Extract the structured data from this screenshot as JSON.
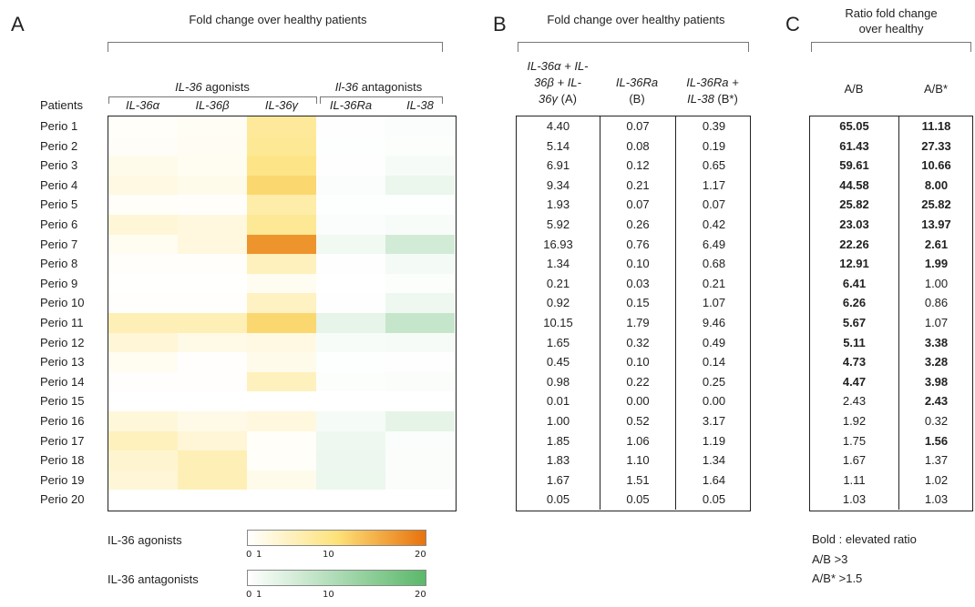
{
  "panel_a": {
    "letter": "A",
    "title": "Fold change over healthy patients",
    "group_agonists_prefix": "IL-36",
    "group_agonists_suffix": " agonists",
    "group_antagonists_prefix": "Il-36",
    "group_antagonists_suffix": " antagonists",
    "patients_label": "Patients",
    "columns": [
      "IL-36α",
      "IL-36β",
      "IL-36γ",
      "IL-36Ra",
      "IL-38"
    ],
    "patients": [
      "Perio 1",
      "Perio 2",
      "Perio 3",
      "Perio 4",
      "Perio 5",
      "Perio 6",
      "Perio 7",
      "Perio 8",
      "Perio 9",
      "Perio 10",
      "Perio 11",
      "Perio 12",
      "Perio 13",
      "Perio 14",
      "Perio 15",
      "Perio 16",
      "Perio 17",
      "Perio 18",
      "Perio 19",
      "Perio 20"
    ],
    "agonist_color_low": "#ffffff",
    "agonist_color_mid": "#fde27a",
    "agonist_color_high": "#e8720c",
    "antagonist_color_low": "#ffffff",
    "antagonist_color_high": "#5bb86a",
    "heatmap_values": [
      [
        0.5,
        0.8,
        7.5,
        0.3,
        0.6
      ],
      [
        0.6,
        0.9,
        8.0,
        0.2,
        0.4
      ],
      [
        1.5,
        1.0,
        9.0,
        0.3,
        1.0
      ],
      [
        2.0,
        1.5,
        11.0,
        0.6,
        2.5
      ],
      [
        0.5,
        0.3,
        6.5,
        0.2,
        0.2
      ],
      [
        3.0,
        2.5,
        8.0,
        0.6,
        0.8
      ],
      [
        1.0,
        2.5,
        17.0,
        1.8,
        5.5
      ],
      [
        0.4,
        0.3,
        5.0,
        0.3,
        1.4
      ],
      [
        0.1,
        0.1,
        1.0,
        0.1,
        0.4
      ],
      [
        0.2,
        0.2,
        4.5,
        0.3,
        2.0
      ],
      [
        5.5,
        5.5,
        11.0,
        3.0,
        7.0
      ],
      [
        3.0,
        1.8,
        2.0,
        0.8,
        1.0
      ],
      [
        1.0,
        0.2,
        1.5,
        0.2,
        0.3
      ],
      [
        0.2,
        0.2,
        5.0,
        0.4,
        0.5
      ],
      [
        0.0,
        0.0,
        0.0,
        0.0,
        0.0
      ],
      [
        2.8,
        1.8,
        2.5,
        1.2,
        3.2
      ],
      [
        5.0,
        3.0,
        0.5,
        2.0,
        0.6
      ],
      [
        3.5,
        5.5,
        0.5,
        2.2,
        0.5
      ],
      [
        3.0,
        5.5,
        1.5,
        2.3,
        0.5
      ],
      [
        0.0,
        0.0,
        0.0,
        0.0,
        0.0
      ]
    ],
    "legend": {
      "agonists_label": "IL-36 agonists",
      "antagonists_label": "IL-36 antagonists",
      "ticks": [
        "0",
        "1",
        "10",
        "20"
      ]
    }
  },
  "panel_b": {
    "letter": "B",
    "title": "Fold change over healthy patients",
    "col1_line1": "IL-36α + IL-",
    "col1_line2": "36β + IL-",
    "col1_line3_italic": "36γ",
    "col1_line3_rest": " (A)",
    "col2_line1": "IL-36Ra",
    "col2_line2": "(B)",
    "col3_line1": "IL-36Ra +",
    "col3_line2_italic": "IL-38",
    "col3_line2_rest": " (B*)",
    "rows": [
      [
        "4.40",
        "0.07",
        "0.39"
      ],
      [
        "5.14",
        "0.08",
        "0.19"
      ],
      [
        "6.91",
        "0.12",
        "0.65"
      ],
      [
        "9.34",
        "0.21",
        "1.17"
      ],
      [
        "1.93",
        "0.07",
        "0.07"
      ],
      [
        "5.92",
        "0.26",
        "0.42"
      ],
      [
        "16.93",
        "0.76",
        "6.49"
      ],
      [
        "1.34",
        "0.10",
        "0.68"
      ],
      [
        "0.21",
        "0.03",
        "0.21"
      ],
      [
        "0.92",
        "0.15",
        "1.07"
      ],
      [
        "10.15",
        "1.79",
        "9.46"
      ],
      [
        "1.65",
        "0.32",
        "0.49"
      ],
      [
        "0.45",
        "0.10",
        "0.14"
      ],
      [
        "0.98",
        "0.22",
        "0.25"
      ],
      [
        "0.01",
        "0.00",
        "0.00"
      ],
      [
        "1.00",
        "0.52",
        "3.17"
      ],
      [
        "1.85",
        "1.06",
        "1.19"
      ],
      [
        "1.83",
        "1.10",
        "1.34"
      ],
      [
        "1.67",
        "1.51",
        "1.64"
      ],
      [
        "0.05",
        "0.05",
        "0.05"
      ]
    ]
  },
  "panel_c": {
    "letter": "C",
    "title_line1": "Ratio fold change",
    "title_line2": "over healthy",
    "col1": "A/B",
    "col2": "A/B*",
    "rows": [
      [
        {
          "v": "65.05",
          "b": true
        },
        {
          "v": "11.18",
          "b": true
        }
      ],
      [
        {
          "v": "61.43",
          "b": true
        },
        {
          "v": "27.33",
          "b": true
        }
      ],
      [
        {
          "v": "59.61",
          "b": true
        },
        {
          "v": "10.66",
          "b": true
        }
      ],
      [
        {
          "v": "44.58",
          "b": true
        },
        {
          "v": "8.00",
          "b": true
        }
      ],
      [
        {
          "v": "25.82",
          "b": true
        },
        {
          "v": "25.82",
          "b": true
        }
      ],
      [
        {
          "v": "23.03",
          "b": true
        },
        {
          "v": "13.97",
          "b": true
        }
      ],
      [
        {
          "v": "22.26",
          "b": true
        },
        {
          "v": "2.61",
          "b": true
        }
      ],
      [
        {
          "v": "12.91",
          "b": true
        },
        {
          "v": "1.99",
          "b": true
        }
      ],
      [
        {
          "v": "6.41",
          "b": true
        },
        {
          "v": "1.00",
          "b": false
        }
      ],
      [
        {
          "v": "6.26",
          "b": true
        },
        {
          "v": "0.86",
          "b": false
        }
      ],
      [
        {
          "v": "5.67",
          "b": true
        },
        {
          "v": "1.07",
          "b": false
        }
      ],
      [
        {
          "v": "5.11",
          "b": true
        },
        {
          "v": "3.38",
          "b": true
        }
      ],
      [
        {
          "v": "4.73",
          "b": true
        },
        {
          "v": "3.28",
          "b": true
        }
      ],
      [
        {
          "v": "4.47",
          "b": true
        },
        {
          "v": "3.98",
          "b": true
        }
      ],
      [
        {
          "v": "2.43",
          "b": false
        },
        {
          "v": "2.43",
          "b": true
        }
      ],
      [
        {
          "v": "1.92",
          "b": false
        },
        {
          "v": "0.32",
          "b": false
        }
      ],
      [
        {
          "v": "1.75",
          "b": false
        },
        {
          "v": "1.56",
          "b": true
        }
      ],
      [
        {
          "v": "1.67",
          "b": false
        },
        {
          "v": "1.37",
          "b": false
        }
      ],
      [
        {
          "v": "1.11",
          "b": false
        },
        {
          "v": "1.02",
          "b": false
        }
      ],
      [
        {
          "v": "1.03",
          "b": false
        },
        {
          "v": "1.03",
          "b": false
        }
      ]
    ],
    "note_line1": "Bold : elevated ratio",
    "note_line2": "A/B >3",
    "note_line3": "A/B* >1.5"
  }
}
